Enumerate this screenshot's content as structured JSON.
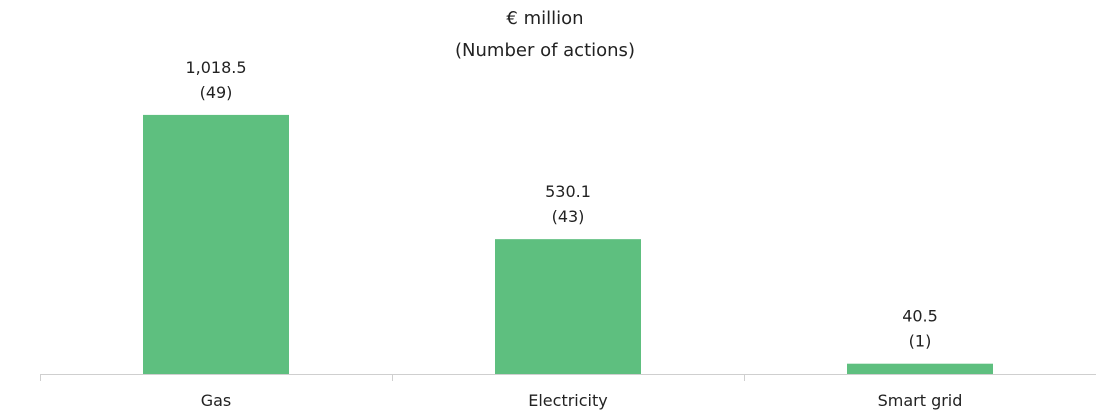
{
  "chart_data": {
    "type": "bar",
    "title": "€ million",
    "subtitle": "(Number of actions)",
    "categories": [
      "Gas",
      "Electricity",
      "Smart grid"
    ],
    "values": [
      1018.5,
      530.1,
      40.5
    ],
    "value_labels": [
      "1,018.5",
      "530.1",
      "40.5"
    ],
    "actions": [
      49,
      43,
      1
    ],
    "action_labels": [
      "(49)",
      "(43)",
      "(1)"
    ],
    "xlabel": "",
    "ylabel": "",
    "ylim": [
      0,
      1140
    ],
    "grid": false,
    "legend": "none",
    "colors": {
      "bar": "#5ebf7f",
      "axis": "#cfcfcf",
      "text": "#222222"
    }
  }
}
